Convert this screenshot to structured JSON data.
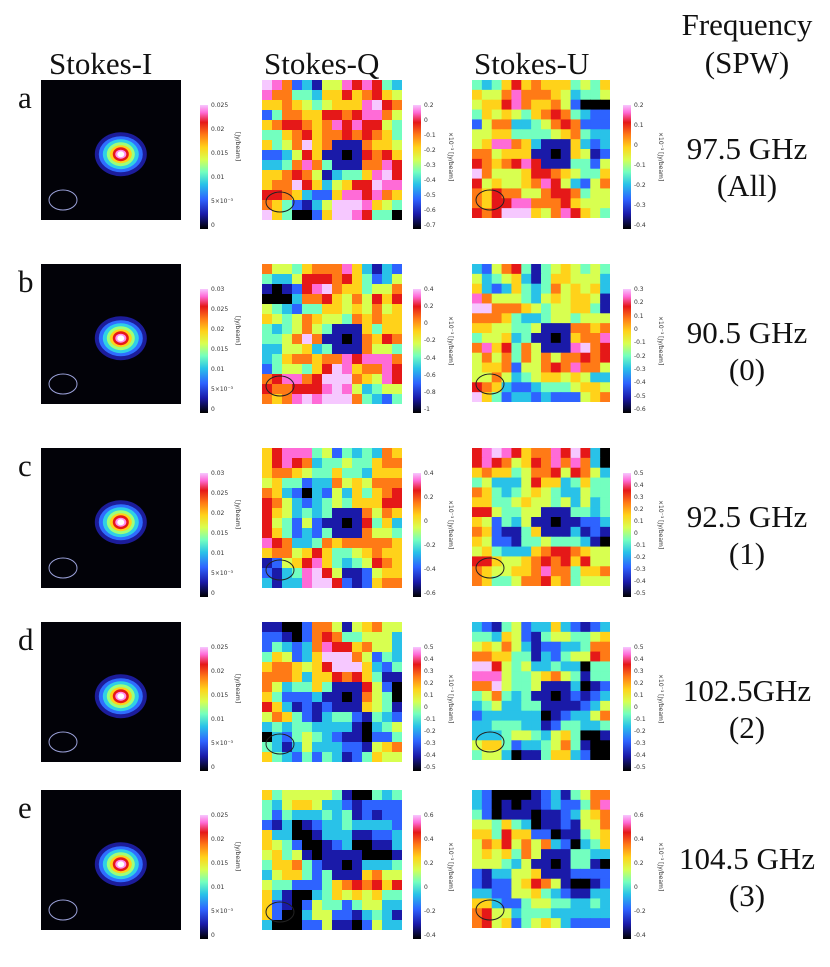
{
  "headers": {
    "stokes_i": "Stokes-I",
    "stokes_q": "Stokes-Q",
    "stokes_u": "Stokes-U",
    "frequency_line1": "Frequency",
    "frequency_line2": "(SPW)"
  },
  "colormap": [
    "#000000",
    "#1a1aa8",
    "#2e63ff",
    "#29c2e8",
    "#73ffbf",
    "#d8ff50",
    "#ffd21a",
    "#ff7a16",
    "#e51818",
    "#ff6bd7",
    "#f6c8ff"
  ],
  "rows": [
    {
      "letter": "a",
      "frequency": "97.5 GHz",
      "spw": "(All)",
      "i_ticks": [
        "0.025",
        "0.02",
        "0.015",
        "0.01",
        "5×10⁻³",
        "0"
      ],
      "i_unit": "[Jy/beam]",
      "q_ticks": [
        "0.2",
        "0",
        "-0.1",
        "-0.2",
        "-0.3",
        "-0.4",
        "-0.5",
        "-0.6",
        "-0.7"
      ],
      "q_unit": "×10⁻³ [Jy/beam]",
      "u_ticks": [
        "0.2",
        "0.1",
        "0",
        "-0.1",
        "-0.2",
        "-0.3",
        "-0.4"
      ],
      "u_unit": "×10⁻³ [Jy/beam]"
    },
    {
      "letter": "b",
      "frequency": "90.5 GHz",
      "spw": "(0)",
      "i_ticks": [
        "0.03",
        "0.025",
        "0.02",
        "0.015",
        "0.01",
        "5×10⁻³",
        "0"
      ],
      "i_unit": "[Jy/beam]",
      "q_ticks": [
        "0.4",
        "0.2",
        "0",
        "-0.2",
        "-0.4",
        "-0.6",
        "-0.8",
        "-1"
      ],
      "q_unit": "×10⁻³ [Jy/beam]",
      "u_ticks": [
        "0.3",
        "0.2",
        "0.1",
        "0",
        "-0.1",
        "-0.2",
        "-0.3",
        "-0.4",
        "-0.5",
        "-0.6"
      ],
      "u_unit": "×10⁻³ [Jy/beam]"
    },
    {
      "letter": "c",
      "frequency": "92.5 GHz",
      "spw": "(1)",
      "i_ticks": [
        "0.03",
        "0.025",
        "0.02",
        "0.015",
        "0.01",
        "5×10⁻³",
        "0"
      ],
      "i_unit": "[Jy/beam]",
      "q_ticks": [
        "0.4",
        "0.2",
        "0",
        "-0.2",
        "-0.4",
        "-0.6"
      ],
      "q_unit": "×10⁻³ [Jy/beam]",
      "u_ticks": [
        "0.5",
        "0.4",
        "0.3",
        "0.2",
        "0.1",
        "0",
        "-0.1",
        "-0.2",
        "-0.3",
        "-0.4",
        "-0.5"
      ],
      "u_unit": "×10⁻³ [Jy/beam]"
    },
    {
      "letter": "d",
      "frequency": "102.5GHz",
      "spw": "(2)",
      "i_ticks": [
        "0.025",
        "0.02",
        "0.015",
        "0.01",
        "5×10⁻³",
        "0"
      ],
      "i_unit": "[Jy/beam]",
      "q_ticks": [
        "0.5",
        "0.4",
        "0.3",
        "0.2",
        "0.1",
        "0",
        "-0.1",
        "-0.2",
        "-0.3",
        "-0.4",
        "-0.5"
      ],
      "q_unit": "×10⁻³ [Jy/beam]",
      "u_ticks": [
        "0.5",
        "0.4",
        "0.3",
        "0.2",
        "0.1",
        "0",
        "-0.1",
        "-0.2",
        "-0.3",
        "-0.4",
        "-0.5"
      ],
      "u_unit": "×10⁻³ [Jy/beam]"
    },
    {
      "letter": "e",
      "frequency": "104.5 GHz",
      "spw": "(3)",
      "i_ticks": [
        "0.025",
        "0.02",
        "0.015",
        "0.01",
        "5×10⁻³",
        "0"
      ],
      "i_unit": "[Jy/beam]",
      "q_ticks": [
        "0.6",
        "0.4",
        "0.2",
        "0",
        "-0.2",
        "-0.4"
      ],
      "q_unit": "×10⁻³ [Jy/beam]",
      "u_ticks": [
        "0.6",
        "0.4",
        "0.2",
        "0",
        "-0.2",
        "-0.4"
      ],
      "u_unit": "×10⁻³ [Jy/beam]"
    }
  ]
}
